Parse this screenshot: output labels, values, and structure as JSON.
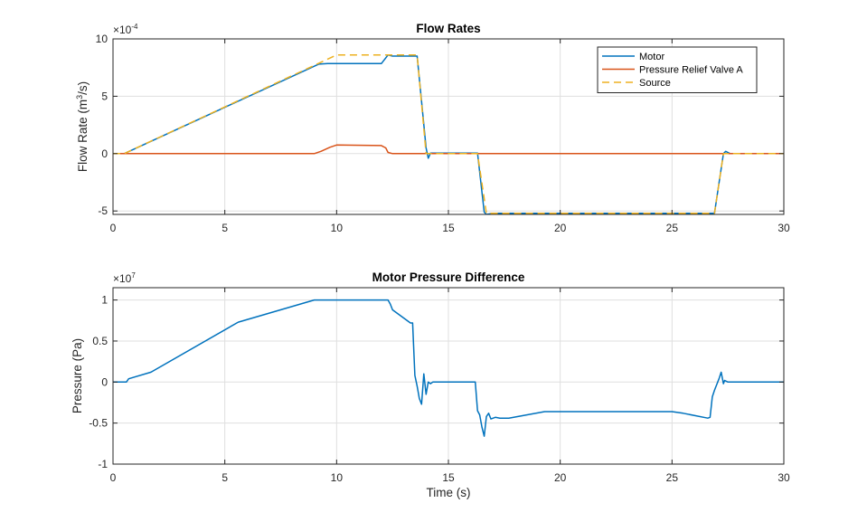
{
  "chart_data": [
    {
      "type": "line",
      "title": "Flow Rates",
      "xlabel": "",
      "ylabel_main": "Flow  Rate  (m",
      "ylabel_sup": "3",
      "ylabel_tail": "/s)",
      "exponent_base": "×10",
      "exponent": "-4",
      "xlim": [
        0,
        30
      ],
      "ylim": [
        -5.3,
        10
      ],
      "xticks": [
        0,
        5,
        10,
        15,
        20,
        25,
        30
      ],
      "yticks": [
        -5,
        0,
        5,
        10
      ],
      "xtick_labels": [
        "0",
        "5",
        "10",
        "15",
        "20",
        "25",
        "30"
      ],
      "ytick_labels": [
        "-5",
        "0",
        "5",
        "10"
      ],
      "grid": true,
      "legend_position": "top-right",
      "series": [
        {
          "name": "Motor",
          "color": "#0072BD",
          "dash": "solid",
          "x": [
            0,
            0.5,
            9.2,
            9.6,
            12.0,
            12.3,
            12.5,
            13.6,
            14.0,
            14.1,
            14.2,
            16.3,
            16.6,
            16.7,
            17.0,
            26.9,
            27.3,
            27.4,
            27.6,
            30
          ],
          "y": [
            0,
            0,
            7.8,
            7.85,
            7.85,
            8.6,
            8.5,
            8.5,
            0.5,
            -0.4,
            0.05,
            0.05,
            -5.1,
            -5.3,
            -5.2,
            -5.2,
            0.0,
            0.2,
            0,
            0
          ]
        },
        {
          "name": "Pressure Relief Valve A",
          "color": "#D95319",
          "dash": "solid",
          "x": [
            0,
            9.0,
            9.3,
            9.7,
            10.0,
            12.0,
            12.2,
            12.3,
            12.5,
            30
          ],
          "y": [
            0,
            0,
            0.2,
            0.55,
            0.75,
            0.7,
            0.5,
            0.1,
            0,
            0
          ]
        },
        {
          "name": "Source",
          "color": "#EDB120",
          "dash": "dashed",
          "x": [
            0,
            0.5,
            10.0,
            13.6,
            14.0,
            16.3,
            16.7,
            26.9,
            27.3,
            30
          ],
          "y": [
            0,
            0,
            8.6,
            8.6,
            0,
            0,
            -5.2,
            -5.2,
            0,
            0
          ]
        }
      ]
    },
    {
      "type": "line",
      "title": "Motor Pressure Difference",
      "xlabel": "Time (s)",
      "ylabel": "Pressure (Pa)",
      "exponent_base": "×10",
      "exponent": "7",
      "xlim": [
        0,
        30
      ],
      "ylim": [
        -1,
        1.15
      ],
      "xticks": [
        0,
        5,
        10,
        15,
        20,
        25,
        30
      ],
      "yticks": [
        -1,
        -0.5,
        0,
        0.5,
        1
      ],
      "xtick_labels": [
        "0",
        "5",
        "10",
        "15",
        "20",
        "25",
        "30"
      ],
      "ytick_labels": [
        "-1",
        "-0.5",
        "0",
        "0.5",
        "1"
      ],
      "grid": true,
      "series": [
        {
          "color": "#0072BD",
          "x": [
            0,
            0.6,
            0.7,
            1.7,
            5.6,
            9.0,
            12.3,
            12.4,
            12.5,
            13.3,
            13.4,
            13.5,
            13.6,
            13.7,
            13.8,
            13.9,
            14.0,
            14.1,
            14.2,
            14.3,
            16.2,
            16.3,
            16.4,
            16.5,
            16.6,
            16.7,
            16.8,
            16.9,
            17.0,
            17.1,
            17.3,
            17.7,
            19.3,
            25.0,
            25.5,
            26.6,
            26.7,
            26.8,
            26.9,
            27.1,
            27.2,
            27.3,
            27.35,
            27.5,
            30
          ],
          "y": [
            0,
            0,
            0.04,
            0.12,
            0.73,
            1.0,
            1.0,
            0.95,
            0.88,
            0.72,
            0.72,
            0.08,
            -0.05,
            -0.2,
            -0.27,
            0.1,
            -0.15,
            0.0,
            -0.02,
            0,
            0,
            -0.35,
            -0.4,
            -0.55,
            -0.66,
            -0.42,
            -0.38,
            -0.45,
            -0.44,
            -0.43,
            -0.44,
            -0.44,
            -0.36,
            -0.36,
            -0.38,
            -0.44,
            -0.43,
            -0.18,
            -0.1,
            0.04,
            0.12,
            -0.02,
            0.02,
            0,
            0
          ]
        }
      ]
    }
  ]
}
